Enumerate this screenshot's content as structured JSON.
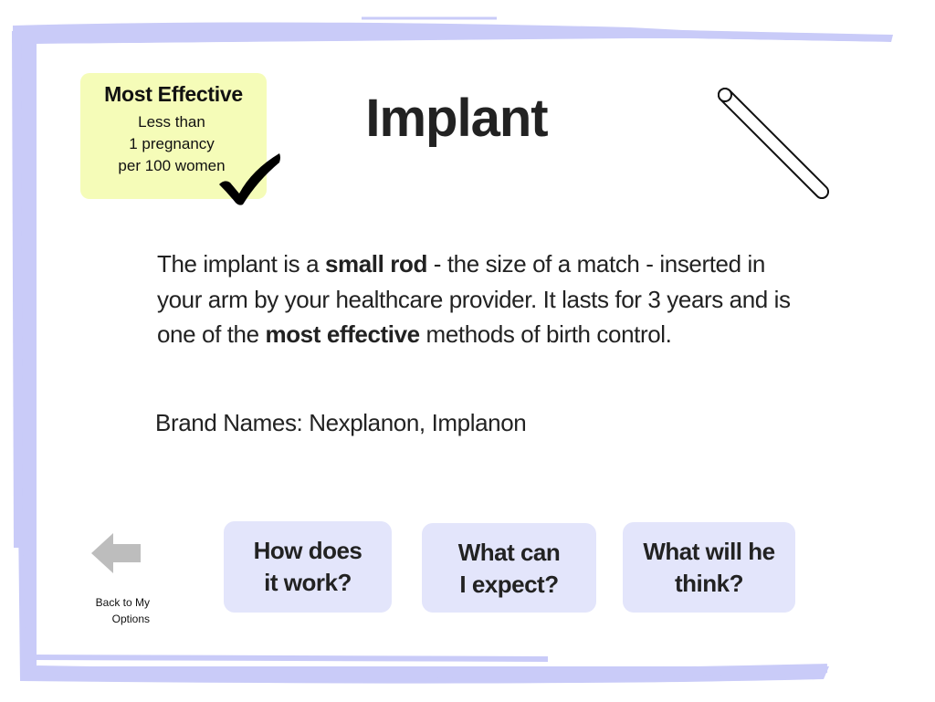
{
  "colors": {
    "frame": "#c9cbf8",
    "badge": "#f5fcb8",
    "button": "#e3e5fb",
    "text": "#222222",
    "back_arrow": "#bdbdbd"
  },
  "effectiveness": {
    "title": "Most Effective",
    "lines": [
      "Less than",
      "1 pregnancy",
      "per 100 women"
    ],
    "icon": "checkmark-icon"
  },
  "page": {
    "title": "Implant",
    "illustration_icon": "implant-rod-icon"
  },
  "description": {
    "part1": "The implant is a ",
    "bold1": "small rod",
    "part2": " - the size of a match - inserted in your arm by your healthcare provider. It lasts for 3 years and is one of the ",
    "bold2": "most effective",
    "part3": " methods of birth control."
  },
  "brand_names": "Brand Names: Nexplanon, Implanon",
  "back": {
    "line1": "Back to My",
    "line2": "Options",
    "icon": "back-arrow-icon"
  },
  "questions": [
    {
      "line1": "How does",
      "line2": "it work?"
    },
    {
      "line1": "What can",
      "line2": "I expect?"
    },
    {
      "line1": "What will he",
      "line2": "think?"
    }
  ]
}
